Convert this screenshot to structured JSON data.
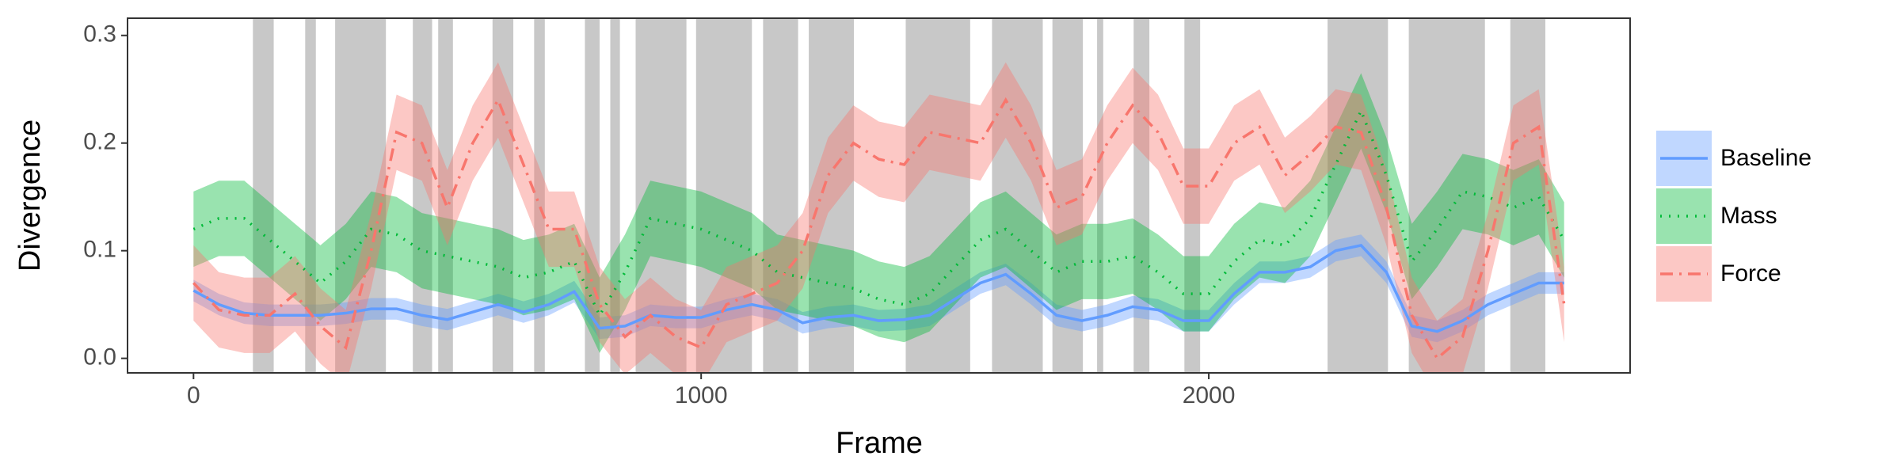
{
  "chart_data": {
    "type": "line",
    "x_label": "Frame",
    "y_label": "Divergence",
    "xlim": [
      -130,
      2830
    ],
    "ylim": [
      -0.0135,
      0.316
    ],
    "xticks": [
      0,
      1000,
      2000
    ],
    "yticks": [
      {
        "value": 0,
        "label": "0.0"
      },
      0.1,
      0.2,
      0.3
    ],
    "shaded_color": "#c8c8c8",
    "shaded": [
      [
        117,
        158
      ],
      [
        220,
        241
      ],
      [
        279,
        379
      ],
      [
        432,
        470
      ],
      [
        482,
        511
      ],
      [
        589,
        630
      ],
      [
        671,
        692
      ],
      [
        771,
        800
      ],
      [
        821,
        840
      ],
      [
        871,
        971
      ],
      [
        990,
        1100
      ],
      [
        1122,
        1191
      ],
      [
        1212,
        1301
      ],
      [
        1403,
        1530
      ],
      [
        1573,
        1673
      ],
      [
        1692,
        1752
      ],
      [
        1780,
        1792
      ],
      [
        1852,
        1883
      ],
      [
        1952,
        1983
      ],
      [
        2234,
        2353
      ],
      [
        2394,
        2544
      ],
      [
        2594,
        2663
      ]
    ],
    "x": [
      0,
      50,
      100,
      150,
      200,
      250,
      300,
      350,
      400,
      450,
      500,
      550,
      600,
      650,
      700,
      750,
      800,
      850,
      900,
      950,
      1000,
      1050,
      1100,
      1150,
      1200,
      1250,
      1300,
      1350,
      1400,
      1450,
      1500,
      1550,
      1600,
      1650,
      1700,
      1750,
      1800,
      1850,
      1900,
      1950,
      2000,
      2050,
      2100,
      2150,
      2200,
      2250,
      2300,
      2350,
      2400,
      2450,
      2500,
      2550,
      2600,
      2650,
      2700
    ],
    "series": [
      {
        "name": "Baseline",
        "color": "#619CFF",
        "dash": "solid",
        "values": [
          0.063,
          0.05,
          0.042,
          0.04,
          0.04,
          0.04,
          0.042,
          0.046,
          0.046,
          0.04,
          0.036,
          0.043,
          0.05,
          0.043,
          0.05,
          0.062,
          0.028,
          0.03,
          0.04,
          0.038,
          0.038,
          0.045,
          0.05,
          0.045,
          0.033,
          0.038,
          0.04,
          0.035,
          0.036,
          0.04,
          0.055,
          0.07,
          0.078,
          0.06,
          0.04,
          0.035,
          0.04,
          0.048,
          0.045,
          0.035,
          0.035,
          0.06,
          0.08,
          0.08,
          0.085,
          0.1,
          0.105,
          0.08,
          0.03,
          0.025,
          0.035,
          0.05,
          0.06,
          0.07,
          0.07
        ],
        "lower": [
          0.053,
          0.04,
          0.032,
          0.03,
          0.03,
          0.03,
          0.032,
          0.036,
          0.036,
          0.03,
          0.026,
          0.033,
          0.04,
          0.033,
          0.04,
          0.052,
          0.018,
          0.02,
          0.03,
          0.028,
          0.028,
          0.035,
          0.04,
          0.035,
          0.023,
          0.028,
          0.03,
          0.025,
          0.026,
          0.03,
          0.045,
          0.06,
          0.068,
          0.05,
          0.03,
          0.025,
          0.03,
          0.038,
          0.035,
          0.025,
          0.025,
          0.05,
          0.07,
          0.07,
          0.075,
          0.09,
          0.095,
          0.07,
          0.02,
          0.015,
          0.025,
          0.04,
          0.05,
          0.06,
          0.06
        ],
        "upper": [
          0.073,
          0.06,
          0.052,
          0.05,
          0.05,
          0.05,
          0.052,
          0.056,
          0.056,
          0.05,
          0.046,
          0.053,
          0.06,
          0.053,
          0.06,
          0.072,
          0.038,
          0.04,
          0.05,
          0.048,
          0.048,
          0.055,
          0.06,
          0.055,
          0.043,
          0.048,
          0.05,
          0.045,
          0.046,
          0.05,
          0.065,
          0.08,
          0.088,
          0.07,
          0.05,
          0.045,
          0.05,
          0.058,
          0.055,
          0.045,
          0.045,
          0.07,
          0.09,
          0.09,
          0.095,
          0.11,
          0.115,
          0.09,
          0.04,
          0.035,
          0.045,
          0.06,
          0.07,
          0.08,
          0.08
        ]
      },
      {
        "name": "Mass",
        "color": "#00BA38",
        "dash": "dotted",
        "values": [
          0.12,
          0.13,
          0.13,
          0.11,
          0.09,
          0.07,
          0.09,
          0.12,
          0.115,
          0.1,
          0.095,
          0.09,
          0.085,
          0.075,
          0.08,
          0.09,
          0.04,
          0.08,
          0.13,
          0.125,
          0.12,
          0.11,
          0.1,
          0.08,
          0.075,
          0.07,
          0.065,
          0.055,
          0.05,
          0.06,
          0.085,
          0.11,
          0.12,
          0.1,
          0.08,
          0.09,
          0.09,
          0.095,
          0.08,
          0.06,
          0.06,
          0.09,
          0.11,
          0.105,
          0.13,
          0.18,
          0.23,
          0.17,
          0.09,
          0.12,
          0.155,
          0.15,
          0.14,
          0.15,
          0.11
        ],
        "lower": [
          0.085,
          0.095,
          0.095,
          0.075,
          0.055,
          0.035,
          0.055,
          0.085,
          0.08,
          0.065,
          0.06,
          0.055,
          0.05,
          0.04,
          0.045,
          0.055,
          0.005,
          0.045,
          0.095,
          0.09,
          0.085,
          0.075,
          0.065,
          0.045,
          0.04,
          0.035,
          0.03,
          0.02,
          0.015,
          0.025,
          0.05,
          0.075,
          0.085,
          0.065,
          0.045,
          0.055,
          0.055,
          0.06,
          0.045,
          0.025,
          0.025,
          0.055,
          0.075,
          0.07,
          0.095,
          0.145,
          0.195,
          0.135,
          0.055,
          0.085,
          0.12,
          0.115,
          0.105,
          0.115,
          0.075
        ],
        "upper": [
          0.155,
          0.165,
          0.165,
          0.145,
          0.125,
          0.105,
          0.125,
          0.155,
          0.15,
          0.135,
          0.13,
          0.125,
          0.12,
          0.11,
          0.115,
          0.125,
          0.075,
          0.115,
          0.165,
          0.16,
          0.155,
          0.145,
          0.135,
          0.115,
          0.11,
          0.105,
          0.1,
          0.09,
          0.085,
          0.095,
          0.12,
          0.145,
          0.155,
          0.135,
          0.115,
          0.125,
          0.125,
          0.13,
          0.115,
          0.095,
          0.095,
          0.125,
          0.145,
          0.14,
          0.165,
          0.215,
          0.265,
          0.205,
          0.125,
          0.155,
          0.19,
          0.185,
          0.175,
          0.185,
          0.145
        ]
      },
      {
        "name": "Force",
        "color": "#F8766D",
        "dash": "dashdot",
        "values": [
          0.07,
          0.045,
          0.04,
          0.04,
          0.06,
          0.03,
          0.01,
          0.1,
          0.21,
          0.2,
          0.14,
          0.2,
          0.24,
          0.18,
          0.12,
          0.12,
          0.05,
          0.02,
          0.04,
          0.02,
          0.01,
          0.05,
          0.06,
          0.07,
          0.1,
          0.17,
          0.2,
          0.185,
          0.18,
          0.21,
          0.205,
          0.2,
          0.24,
          0.2,
          0.14,
          0.15,
          0.2,
          0.235,
          0.21,
          0.16,
          0.16,
          0.2,
          0.215,
          0.17,
          0.19,
          0.215,
          0.21,
          0.14,
          0.04,
          0,
          0.02,
          0.1,
          0.2,
          0.215,
          0.05
        ],
        "lower": [
          0.035,
          0.01,
          0.005,
          0.005,
          0.025,
          -0.005,
          -0.025,
          0.065,
          0.175,
          0.165,
          0.105,
          0.165,
          0.205,
          0.145,
          0.085,
          0.085,
          0.015,
          -0.015,
          0.005,
          -0.015,
          -0.025,
          0.015,
          0.025,
          0.035,
          0.065,
          0.135,
          0.165,
          0.15,
          0.145,
          0.175,
          0.17,
          0.165,
          0.205,
          0.165,
          0.105,
          0.115,
          0.165,
          0.2,
          0.175,
          0.125,
          0.125,
          0.165,
          0.18,
          0.135,
          0.155,
          0.18,
          0.175,
          0.105,
          0.005,
          -0.035,
          -0.015,
          0.065,
          0.165,
          0.18,
          0.015
        ],
        "upper": [
          0.105,
          0.08,
          0.075,
          0.075,
          0.095,
          0.065,
          0.045,
          0.135,
          0.245,
          0.235,
          0.175,
          0.235,
          0.275,
          0.215,
          0.155,
          0.155,
          0.085,
          0.055,
          0.075,
          0.055,
          0.045,
          0.085,
          0.095,
          0.105,
          0.135,
          0.205,
          0.235,
          0.22,
          0.215,
          0.245,
          0.24,
          0.235,
          0.275,
          0.235,
          0.175,
          0.185,
          0.235,
          0.27,
          0.245,
          0.195,
          0.195,
          0.235,
          0.25,
          0.205,
          0.225,
          0.25,
          0.245,
          0.175,
          0.075,
          0.035,
          0.055,
          0.135,
          0.235,
          0.25,
          0.085
        ]
      }
    ]
  }
}
